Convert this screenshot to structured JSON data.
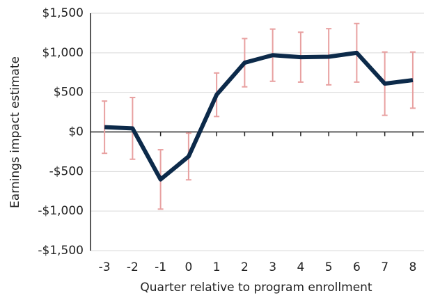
{
  "chart_data": {
    "type": "line",
    "x_label": "Quarter relative to program enrollment",
    "y_label": "Earnings impact estimate",
    "x": [
      -3,
      -2,
      -1,
      0,
      1,
      2,
      3,
      4,
      5,
      6,
      7,
      8
    ],
    "series": [
      {
        "name": "Earnings impact estimate",
        "color": "#0c2a4a",
        "values": [
          60,
          45,
          -600,
          -310,
          470,
          875,
          970,
          945,
          950,
          1000,
          610,
          655
        ],
        "error": [
          330,
          390,
          375,
          295,
          275,
          305,
          330,
          315,
          355,
          370,
          400,
          355
        ],
        "error_color": "#e8a0a0"
      }
    ],
    "xlim": [
      -3.5,
      8.4
    ],
    "xticks": [
      -3,
      -2,
      -1,
      0,
      1,
      2,
      3,
      4,
      5,
      6,
      7,
      8
    ],
    "ylim": [
      -1500,
      1500
    ],
    "yticks": [
      {
        "value": -1500,
        "label": "-$1,500"
      },
      {
        "value": -1000,
        "label": "-$1,000"
      },
      {
        "value": -500,
        "label": "-$500"
      },
      {
        "value": 0,
        "label": "$0"
      },
      {
        "value": 500,
        "label": "$500"
      },
      {
        "value": 1000,
        "label": "$1,000"
      },
      {
        "value": 1500,
        "label": "$1,500"
      }
    ],
    "grid": true
  }
}
